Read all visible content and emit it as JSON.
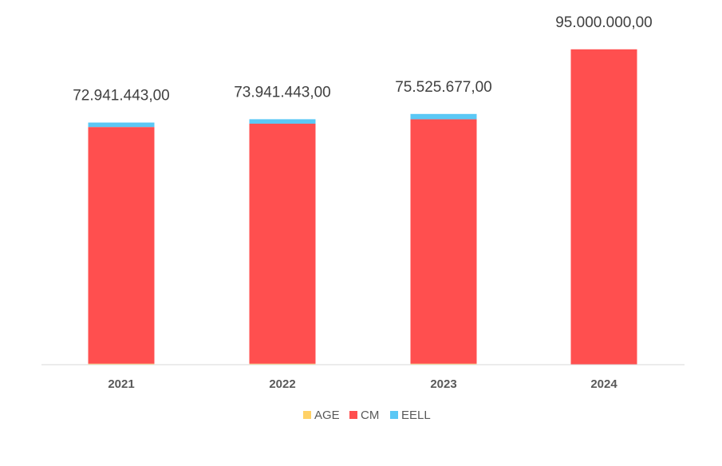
{
  "chart_data": {
    "type": "bar",
    "stacked": true,
    "categories": [
      "2021",
      "2022",
      "2023",
      "2024"
    ],
    "series": [
      {
        "name": "AGE",
        "color": "#FFD166",
        "values": [
          300000,
          300000,
          300000,
          0
        ]
      },
      {
        "name": "CM",
        "color": "#FF4F4F",
        "values": [
          71291443,
          72291443,
          73625677,
          95000000
        ]
      },
      {
        "name": "EELL",
        "color": "#5BC8F5",
        "values": [
          1350000,
          1350000,
          1600000,
          0
        ]
      }
    ],
    "totals": [
      "72.941.443,00",
      "73.941.443,00",
      "75.525.677,00",
      "95.000.000,00"
    ],
    "ylim": [
      0,
      100000000
    ],
    "grid": false,
    "legend": "bottom"
  }
}
